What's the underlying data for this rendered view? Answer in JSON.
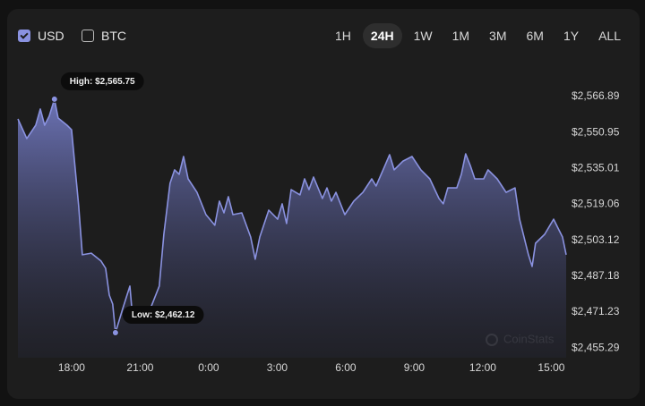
{
  "controls": {
    "currencies": [
      {
        "label": "USD",
        "checked": true
      },
      {
        "label": "BTC",
        "checked": false
      }
    ],
    "ranges": [
      "1H",
      "24H",
      "1W",
      "1M",
      "3M",
      "6M",
      "1Y",
      "ALL"
    ],
    "active_range": "24H"
  },
  "chart_data": {
    "type": "area",
    "color": "#8a92e0",
    "watermark": "CoinStats",
    "xlim": [
      15.65,
      39.65
    ],
    "xticks": [
      {
        "value": 18,
        "label": "18:00"
      },
      {
        "value": 21,
        "label": "21:00"
      },
      {
        "value": 24,
        "label": "0:00"
      },
      {
        "value": 27,
        "label": "3:00"
      },
      {
        "value": 30,
        "label": "6:00"
      },
      {
        "value": 33,
        "label": "9:00"
      },
      {
        "value": 36,
        "label": "12:00"
      },
      {
        "value": 39,
        "label": "15:00"
      }
    ],
    "ylim": [
      2451,
      2582
    ],
    "yticks": [
      {
        "value": 2566.89,
        "label": "$2,566.89"
      },
      {
        "value": 2550.95,
        "label": "$2,550.95"
      },
      {
        "value": 2535.01,
        "label": "$2,535.01"
      },
      {
        "value": 2519.06,
        "label": "$2,519.06"
      },
      {
        "value": 2503.12,
        "label": "$2,503.12"
      },
      {
        "value": 2487.18,
        "label": "$2,487.18"
      },
      {
        "value": 2471.23,
        "label": "$2,471.23"
      },
      {
        "value": 2455.29,
        "label": "$2,455.29"
      }
    ],
    "grid": false,
    "x": [
      15.65,
      16.04,
      16.43,
      16.63,
      16.82,
      17.02,
      17.25,
      17.41,
      17.8,
      18.0,
      18.2,
      18.31,
      18.47,
      18.86,
      19.29,
      19.49,
      19.65,
      19.8,
      19.92,
      20.24,
      20.55,
      20.67,
      21.06,
      21.45,
      21.84,
      22.04,
      22.31,
      22.51,
      22.71,
      22.9,
      23.1,
      23.49,
      23.88,
      24.27,
      24.47,
      24.67,
      24.86,
      25.06,
      25.45,
      25.84,
      26.04,
      26.24,
      26.63,
      27.02,
      27.22,
      27.41,
      27.61,
      28.0,
      28.2,
      28.39,
      28.59,
      28.98,
      29.18,
      29.37,
      29.57,
      29.96,
      30.35,
      30.75,
      31.14,
      31.33,
      31.72,
      31.92,
      32.12,
      32.51,
      32.9,
      33.29,
      33.68,
      34.08,
      34.27,
      34.47,
      34.86,
      35.06,
      35.25,
      35.45,
      35.65,
      36.04,
      36.23,
      36.63,
      37.02,
      37.41,
      37.61,
      38.0,
      38.16,
      38.31,
      38.71,
      39.1,
      39.29,
      39.49,
      39.65
    ],
    "values": [
      2557.0,
      2548.3,
      2554.2,
      2561.4,
      2554.2,
      2558.2,
      2565.75,
      2557.4,
      2554.2,
      2552.2,
      2530.4,
      2518.5,
      2496.7,
      2497.4,
      2493.9,
      2490.7,
      2478.8,
      2474.8,
      2462.12,
      2472.8,
      2482.8,
      2468.9,
      2471.6,
      2472.8,
      2482.8,
      2505.8,
      2528.4,
      2534.4,
      2532.4,
      2540.3,
      2530.4,
      2524.4,
      2514.5,
      2509.8,
      2520.5,
      2515.3,
      2522.5,
      2514.5,
      2515.3,
      2504.6,
      2494.7,
      2504.6,
      2516.5,
      2512.5,
      2519.3,
      2510.6,
      2525.6,
      2523.3,
      2530.4,
      2525.6,
      2531.2,
      2521.7,
      2526.4,
      2520.5,
      2524.4,
      2514.5,
      2520.5,
      2524.4,
      2530.4,
      2527.2,
      2536.4,
      2541.1,
      2534.4,
      2538.3,
      2540.3,
      2534.4,
      2530.4,
      2521.7,
      2519.3,
      2526.4,
      2526.4,
      2532.4,
      2541.5,
      2536.4,
      2530.4,
      2530.4,
      2534.4,
      2530.4,
      2524.4,
      2526.4,
      2512.5,
      2496.7,
      2491.5,
      2501.8,
      2505.8,
      2512.5,
      2508.6,
      2504.6,
      2496.7
    ],
    "annotations": [
      {
        "label": "High: $2,565.75",
        "x": 17.25,
        "value": 2565.75
      },
      {
        "label": "Low: $2,462.12",
        "x": 19.92,
        "value": 2462.12
      }
    ]
  }
}
